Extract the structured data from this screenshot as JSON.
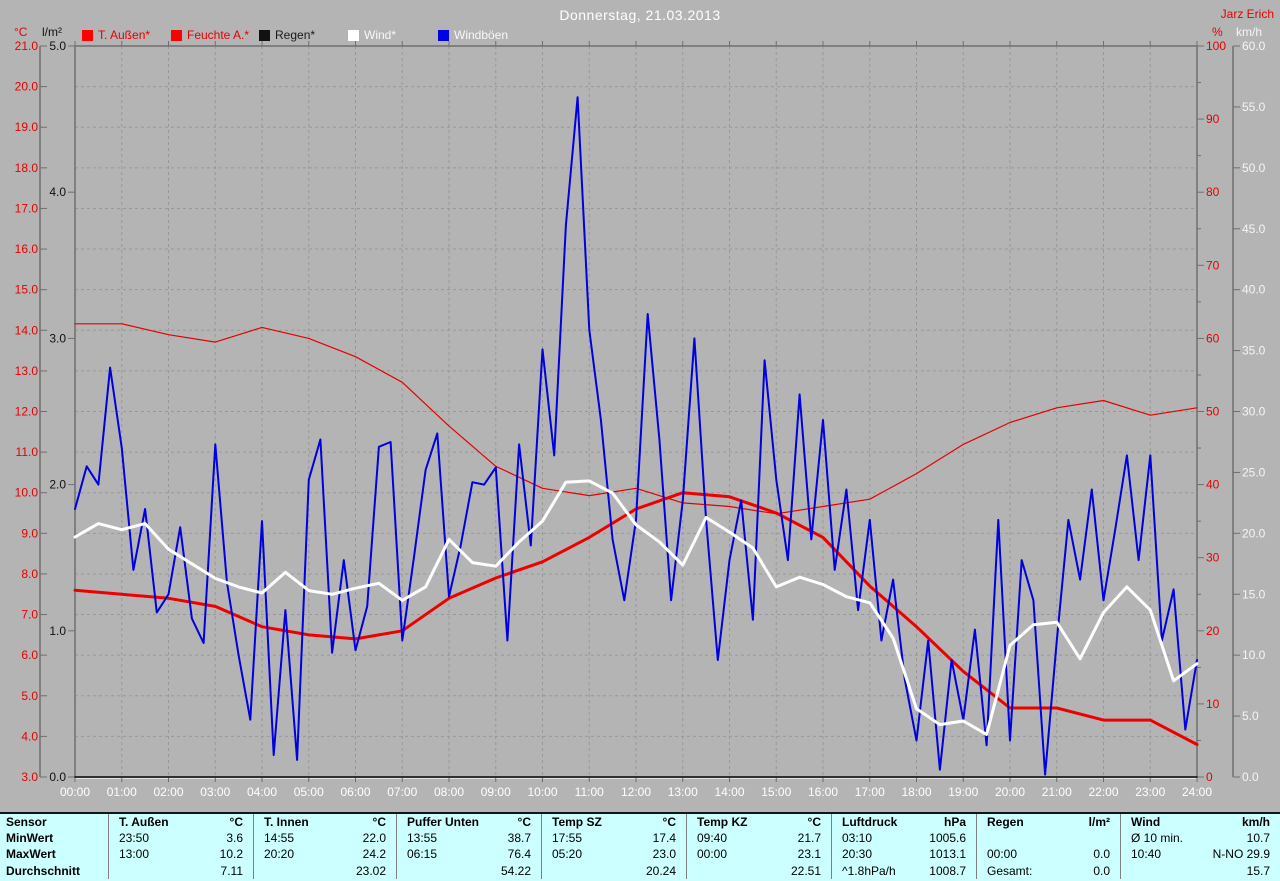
{
  "header": {
    "title": "Donnerstag, 21.03.2013",
    "author": "Jarz Erich"
  },
  "legend": [
    {
      "label": "T. Außen*",
      "swatch": "#ff0000",
      "text_color": "#e60000"
    },
    {
      "label": "Feuchte A.*",
      "swatch": "#ff0000",
      "text_color": "#e60000"
    },
    {
      "label": "Regen*",
      "swatch": "#111111",
      "text_color": "#1a1a1a"
    },
    {
      "label": "Wind*",
      "swatch": "#ffffff",
      "text_color": "#f8f8f8"
    },
    {
      "label": "Windböen",
      "swatch": "#0000e0",
      "text_color": "#f8f8f8"
    }
  ],
  "chart_data": {
    "type": "line",
    "title": "Donnerstag, 21.03.2013",
    "grid": true,
    "axes": {
      "temp": {
        "unit": "°C",
        "min": 3,
        "max": 21,
        "step": 1,
        "color": "#e60000",
        "side": "outer-left"
      },
      "rain": {
        "unit": "l/m²",
        "min": 0,
        "max": 5,
        "step": 1,
        "color": "#111111",
        "side": "inner-left"
      },
      "humidity": {
        "unit": "%",
        "min": 0,
        "max": 100,
        "step": 10,
        "minor_step": 5,
        "color": "#e60000",
        "side": "inner-right"
      },
      "wind": {
        "unit": "km/h",
        "min": 0,
        "max": 60,
        "step": 5,
        "color": "#f5f5f5",
        "side": "outer-right"
      },
      "x": {
        "labels": [
          "00:00",
          "01:00",
          "02:00",
          "03:00",
          "04:00",
          "05:00",
          "06:00",
          "07:00",
          "08:00",
          "09:00",
          "10:00",
          "11:00",
          "12:00",
          "13:00",
          "14:00",
          "15:00",
          "16:00",
          "17:00",
          "18:00",
          "19:00",
          "20:00",
          "21:00",
          "22:00",
          "23:00",
          "24:00"
        ],
        "hours_min": 0,
        "hours_max": 24
      }
    },
    "series": [
      {
        "name": "Regen",
        "axis": "rain",
        "color": "#111111",
        "width": 1.5,
        "interval_h": 1,
        "values": [
          0,
          0,
          0,
          0,
          0,
          0,
          0,
          0,
          0,
          0,
          0,
          0,
          0,
          0,
          0,
          0,
          0,
          0,
          0,
          0,
          0,
          0,
          0,
          0,
          0
        ]
      },
      {
        "name": "Feuchte A.",
        "axis": "humidity",
        "color": "#e60000",
        "width": 1.2,
        "interval_h": 1,
        "values": [
          62,
          62,
          60.5,
          59.5,
          61.5,
          60,
          57.5,
          54,
          48,
          42.5,
          39.5,
          38.5,
          39.5,
          37.5,
          37,
          36,
          37,
          38,
          41.5,
          45.5,
          48.5,
          50.5,
          51.5,
          49.5,
          50.5
        ]
      },
      {
        "name": "T. Außen",
        "axis": "temp",
        "color": "#ee0000",
        "width": 3,
        "interval_h": 1,
        "values": [
          7.6,
          7.5,
          7.4,
          7.2,
          6.7,
          6.5,
          6.4,
          6.6,
          7.4,
          7.9,
          8.3,
          8.9,
          9.6,
          10.0,
          9.9,
          9.5,
          8.9,
          7.7,
          6.7,
          5.6,
          4.7,
          4.7,
          4.4,
          4.4,
          3.8
        ]
      },
      {
        "name": "Windböen",
        "axis": "wind",
        "color": "#0000e0",
        "width": 2,
        "interval_h": 0.25,
        "values": [
          22,
          25.5,
          24,
          33.6,
          27,
          17,
          22,
          13.5,
          15,
          20.5,
          13,
          11,
          27.3,
          16,
          10,
          4.7,
          21,
          1.8,
          13.7,
          1.4,
          24.4,
          27.7,
          10.2,
          17.8,
          10.4,
          14,
          27.1,
          27.5,
          11.2,
          18,
          25.2,
          28.2,
          14.8,
          19,
          24.2,
          24,
          25.4,
          11.2,
          27.3,
          19,
          35.1,
          26.4,
          45.3,
          55.8,
          36.7,
          29.3,
          19.5,
          14.5,
          21.1,
          38,
          27.7,
          14.5,
          22.7,
          36,
          21.1,
          9.6,
          17.8,
          22.7,
          12.9,
          34.2,
          24.4,
          17.8,
          31.4,
          19.5,
          29.3,
          17,
          23.6,
          13.7,
          21.1,
          11.2,
          16.2,
          8,
          3,
          11.2,
          0.6,
          9.6,
          4.7,
          12.1,
          2.6,
          21.1,
          3,
          17.8,
          14.5,
          0.2,
          11.2,
          21.1,
          16.2,
          23.6,
          14.5,
          20.3,
          26.4,
          17.8,
          26.4,
          11.2,
          15.4,
          3.9,
          9.6
        ]
      },
      {
        "name": "Wind",
        "axis": "wind",
        "color": "#ffffff",
        "width": 3,
        "interval_h": 0.5,
        "values": [
          19.7,
          20.8,
          20.3,
          20.8,
          18.7,
          17.5,
          16.3,
          15.6,
          15.1,
          16.8,
          15.3,
          15,
          15.5,
          15.9,
          14.5,
          15.6,
          19.5,
          17.6,
          17.3,
          19.3,
          21,
          24.2,
          24.3,
          23.3,
          20.7,
          19.3,
          17.4,
          21.3,
          20.1,
          18.8,
          15.6,
          16.4,
          15.8,
          14.8,
          14.3,
          11.4,
          5.6,
          4.3,
          4.6,
          3.5,
          10.8,
          12.5,
          12.7,
          9.7,
          13.5,
          15.6,
          13.7,
          7.9,
          9.3
        ]
      }
    ]
  },
  "table": {
    "row_labels": [
      "Sensor",
      "MinWert",
      "MaxWert",
      "Durchschnitt"
    ],
    "columns": [
      {
        "name": "T. Außen",
        "unit": "°C",
        "min": {
          "time": "23:50",
          "value": "3.6"
        },
        "max": {
          "time": "13:00",
          "value": "10.2"
        },
        "avg_label": "",
        "avg": "7.11"
      },
      {
        "name": "T. Innen",
        "unit": "°C",
        "min": {
          "time": "14:55",
          "value": "22.0"
        },
        "max": {
          "time": "20:20",
          "value": "24.2"
        },
        "avg_label": "",
        "avg": "23.02"
      },
      {
        "name": "Puffer Unten",
        "unit": "°C",
        "min": {
          "time": "13:55",
          "value": "38.7"
        },
        "max": {
          "time": "06:15",
          "value": "76.4"
        },
        "avg_label": "",
        "avg": "54.22"
      },
      {
        "name": "Temp SZ",
        "unit": "°C",
        "min": {
          "time": "17:55",
          "value": "17.4"
        },
        "max": {
          "time": "05:20",
          "value": "23.0"
        },
        "avg_label": "",
        "avg": "20.24"
      },
      {
        "name": "Temp KZ",
        "unit": "°C",
        "min": {
          "time": "09:40",
          "value": "21.7"
        },
        "max": {
          "time": "00:00",
          "value": "23.1"
        },
        "avg_label": "",
        "avg": "22.51"
      },
      {
        "name": "Luftdruck",
        "unit": "hPa",
        "min": {
          "time": "03:10",
          "value": "1005.6"
        },
        "max": {
          "time": "20:30",
          "value": "1013.1"
        },
        "avg_label": "^1.8hPa/h",
        "avg": "1008.7"
      },
      {
        "name": "Regen",
        "unit": "l/m²",
        "min": {
          "time": "",
          "value": ""
        },
        "max": {
          "time": "00:00",
          "value": "0.0"
        },
        "avg_label": "Gesamt:",
        "avg": "0.0"
      },
      {
        "name": "Wind",
        "unit": "km/h",
        "min": {
          "time": "Ø 10 min.",
          "value": "10.7"
        },
        "max": {
          "time": "10:40",
          "dir": "N-NO",
          "value": "29.9"
        },
        "avg_label": "",
        "avg": "15.7"
      }
    ]
  },
  "colors": {
    "background": "#b4b4b4",
    "grid": "#989898",
    "axis": "#6f6f6f",
    "table_bg": "#ccffff",
    "accent_red": "#e60000",
    "gust_blue": "#0000e0"
  }
}
